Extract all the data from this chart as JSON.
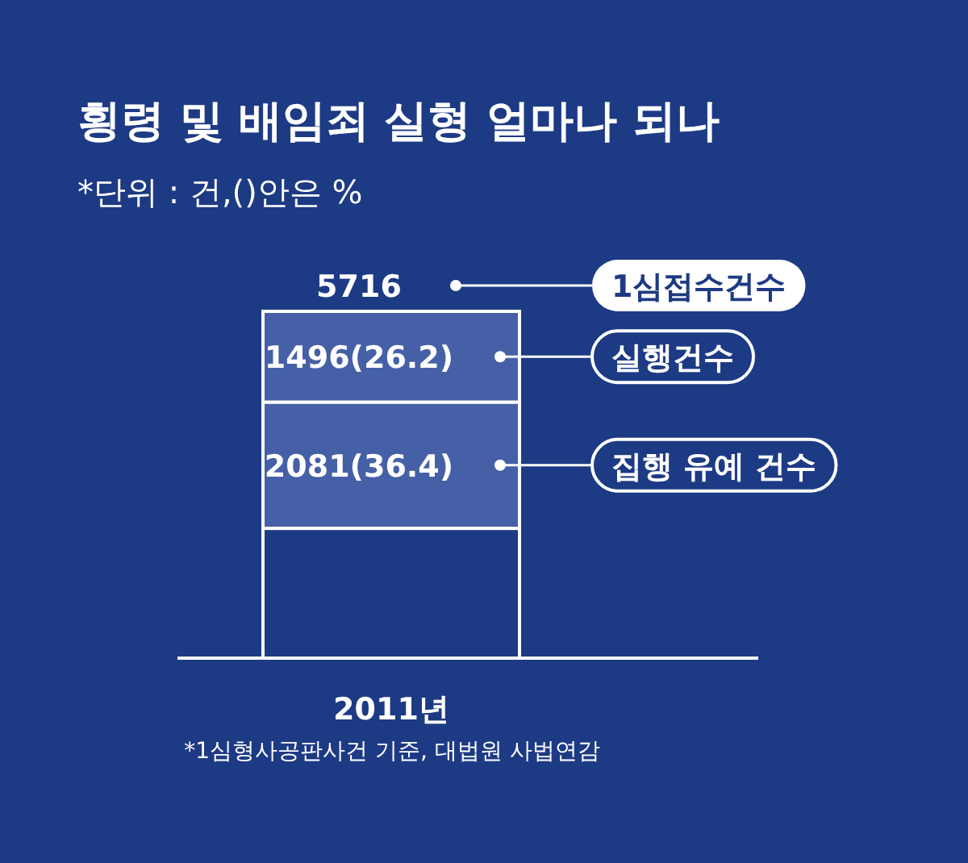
{
  "chart_data": {
    "type": "bar",
    "stacked": true,
    "title": "횡령 및 배임죄 실형 얼마나 되나",
    "subtitle": "*단위 : 건,()안은 %",
    "categories": [
      "2011년"
    ],
    "series": [
      {
        "color": "#1d3a84",
        "values": [
          2139
        ],
        "value_labels": [
          null
        ]
      },
      {
        "name": "집행 유예 건수",
        "color": "#4560a6",
        "values": [
          2081
        ],
        "value_labels": [
          "2081(36.4)"
        ]
      },
      {
        "name": "실행건수",
        "color": "#4560a6",
        "values": [
          1496
        ],
        "value_labels": [
          "1496(26.2)"
        ]
      }
    ],
    "totals": [
      "5716"
    ],
    "legend": "right",
    "annotations": [
      "1심접수건수",
      "*1심형사공판사건 기준, 대법원 사법연감"
    ]
  }
}
